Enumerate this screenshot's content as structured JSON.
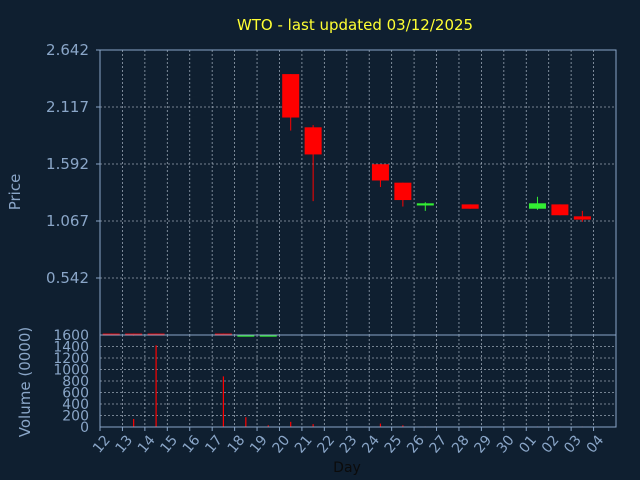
{
  "chart_data": {
    "type": "candlestick",
    "title": "WTO - last updated 03/12/2025",
    "ylabel": "Price",
    "volume_label": "Volume (0000)",
    "xlabel": "Day",
    "price_ticks": [
      "0.542",
      "1.067",
      "1.592",
      "2.117",
      "2.642"
    ],
    "price_ylim": [
      0.017,
      2.642
    ],
    "volume_ticks": [
      "0",
      "200",
      "400",
      "600",
      "800",
      "1000",
      "1200",
      "1400",
      "1600"
    ],
    "volume_ylim": [
      0,
      1600
    ],
    "days": [
      "12",
      "13",
      "14",
      "15",
      "16",
      "17",
      "18",
      "19",
      "20",
      "21",
      "22",
      "23",
      "24",
      "25",
      "26",
      "27",
      "28",
      "29",
      "30",
      "01",
      "02",
      "03",
      "04"
    ],
    "colors": {
      "up": "#33ee33",
      "down": "#ff0000",
      "title": "#ffff33",
      "axis": "#8aa6c8",
      "background": "#0f1f30"
    },
    "candles": [
      {
        "day": "12",
        "open": 0.03,
        "high": 0.03,
        "low": 0.02,
        "close": 0.02
      },
      {
        "day": "13",
        "open": 0.03,
        "high": 0.03,
        "low": 0.01,
        "close": 0.02
      },
      {
        "day": "14",
        "open": 0.03,
        "high": 0.03,
        "low": 0.02,
        "close": 0.02
      },
      {
        "day": "17",
        "open": 0.03,
        "high": 0.03,
        "low": 0.02,
        "close": 0.02
      },
      {
        "day": "18",
        "open": 0.02,
        "high": 0.02,
        "low": 0.02,
        "close": 0.02
      },
      {
        "day": "19",
        "open": 0.02,
        "high": 0.02,
        "low": 0.02,
        "close": 0.02
      },
      {
        "day": "20",
        "open": 2.42,
        "high": 2.42,
        "low": 1.9,
        "close": 2.02
      },
      {
        "day": "21",
        "open": 1.93,
        "high": 1.95,
        "low": 1.25,
        "close": 1.68
      },
      {
        "day": "24",
        "open": 1.59,
        "high": 1.59,
        "low": 1.38,
        "close": 1.44
      },
      {
        "day": "25",
        "open": 1.42,
        "high": 1.42,
        "low": 1.2,
        "close": 1.26
      },
      {
        "day": "26",
        "open": 1.21,
        "high": 1.24,
        "low": 1.16,
        "close": 1.23
      },
      {
        "day": "28",
        "open": 1.22,
        "high": 1.22,
        "low": 1.18,
        "close": 1.18
      },
      {
        "day": "01",
        "open": 1.18,
        "high": 1.29,
        "low": 1.17,
        "close": 1.23
      },
      {
        "day": "02",
        "open": 1.22,
        "high": 1.22,
        "low": 1.12,
        "close": 1.12
      },
      {
        "day": "03",
        "open": 1.11,
        "high": 1.16,
        "low": 1.06,
        "close": 1.08
      }
    ],
    "volume": [
      {
        "day": "12",
        "value": 0
      },
      {
        "day": "13",
        "value": 140
      },
      {
        "day": "14",
        "value": 1420
      },
      {
        "day": "17",
        "value": 880
      },
      {
        "day": "18",
        "value": 170
      },
      {
        "day": "19",
        "value": 30
      },
      {
        "day": "20",
        "value": 90
      },
      {
        "day": "21",
        "value": 50
      },
      {
        "day": "24",
        "value": 60
      },
      {
        "day": "25",
        "value": 30
      },
      {
        "day": "26",
        "value": 10
      },
      {
        "day": "28",
        "value": 10
      },
      {
        "day": "01",
        "value": 10
      },
      {
        "day": "02",
        "value": 10
      },
      {
        "day": "03",
        "value": 10
      }
    ],
    "grid": true
  }
}
